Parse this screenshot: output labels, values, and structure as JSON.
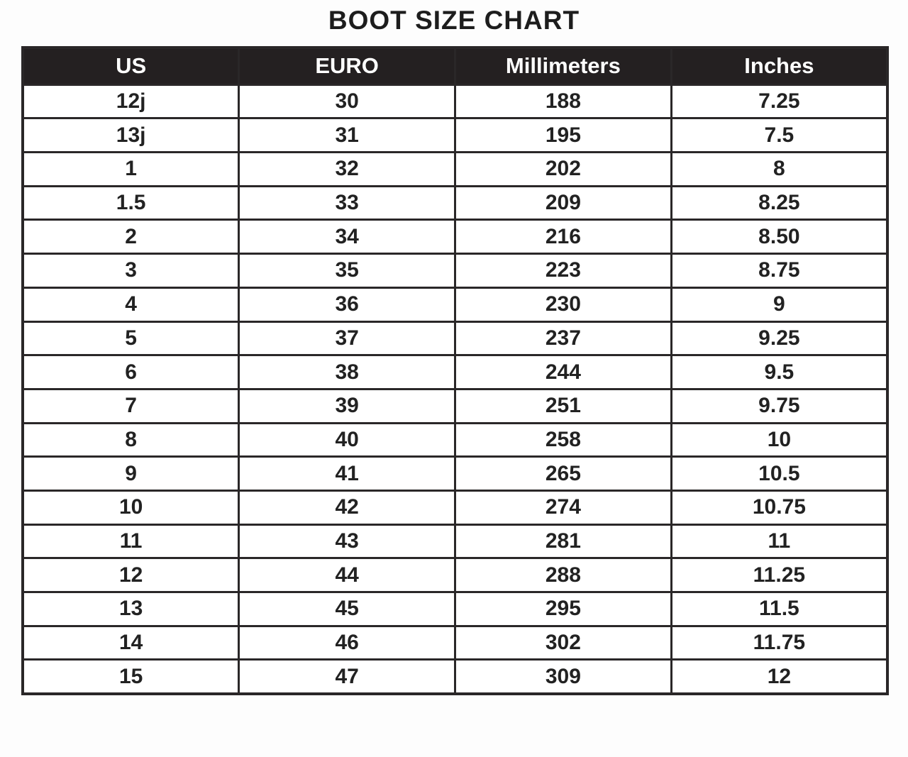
{
  "title": "BOOT SIZE CHART",
  "chart_data": {
    "type": "table",
    "title": "BOOT SIZE CHART",
    "columns": [
      "US",
      "EURO",
      "Millimeters",
      "Inches"
    ],
    "rows": [
      [
        "12j",
        "30",
        "188",
        "7.25"
      ],
      [
        "13j",
        "31",
        "195",
        "7.5"
      ],
      [
        "1",
        "32",
        "202",
        "8"
      ],
      [
        "1.5",
        "33",
        "209",
        "8.25"
      ],
      [
        "2",
        "34",
        "216",
        "8.50"
      ],
      [
        "3",
        "35",
        "223",
        "8.75"
      ],
      [
        "4",
        "36",
        "230",
        "9"
      ],
      [
        "5",
        "37",
        "237",
        "9.25"
      ],
      [
        "6",
        "38",
        "244",
        "9.5"
      ],
      [
        "7",
        "39",
        "251",
        "9.75"
      ],
      [
        "8",
        "40",
        "258",
        "10"
      ],
      [
        "9",
        "41",
        "265",
        "10.5"
      ],
      [
        "10",
        "42",
        "274",
        "10.75"
      ],
      [
        "11",
        "43",
        "281",
        "11"
      ],
      [
        "12",
        "44",
        "288",
        "11.25"
      ],
      [
        "13",
        "45",
        "295",
        "11.5"
      ],
      [
        "14",
        "46",
        "302",
        "11.75"
      ],
      [
        "15",
        "47",
        "309",
        "12"
      ]
    ],
    "layout_hints": {
      "header_style": "inverted-black-bar",
      "grid": "on",
      "text_alignment": "center"
    }
  },
  "colors": {
    "page_bg": "#fdfdfd",
    "title_color": "#1d1d1d",
    "header_bg": "#242021",
    "header_text": "#ffffff",
    "border": "#2a2728",
    "cell_bg": "#ffffff",
    "cell_text": "#222222"
  }
}
